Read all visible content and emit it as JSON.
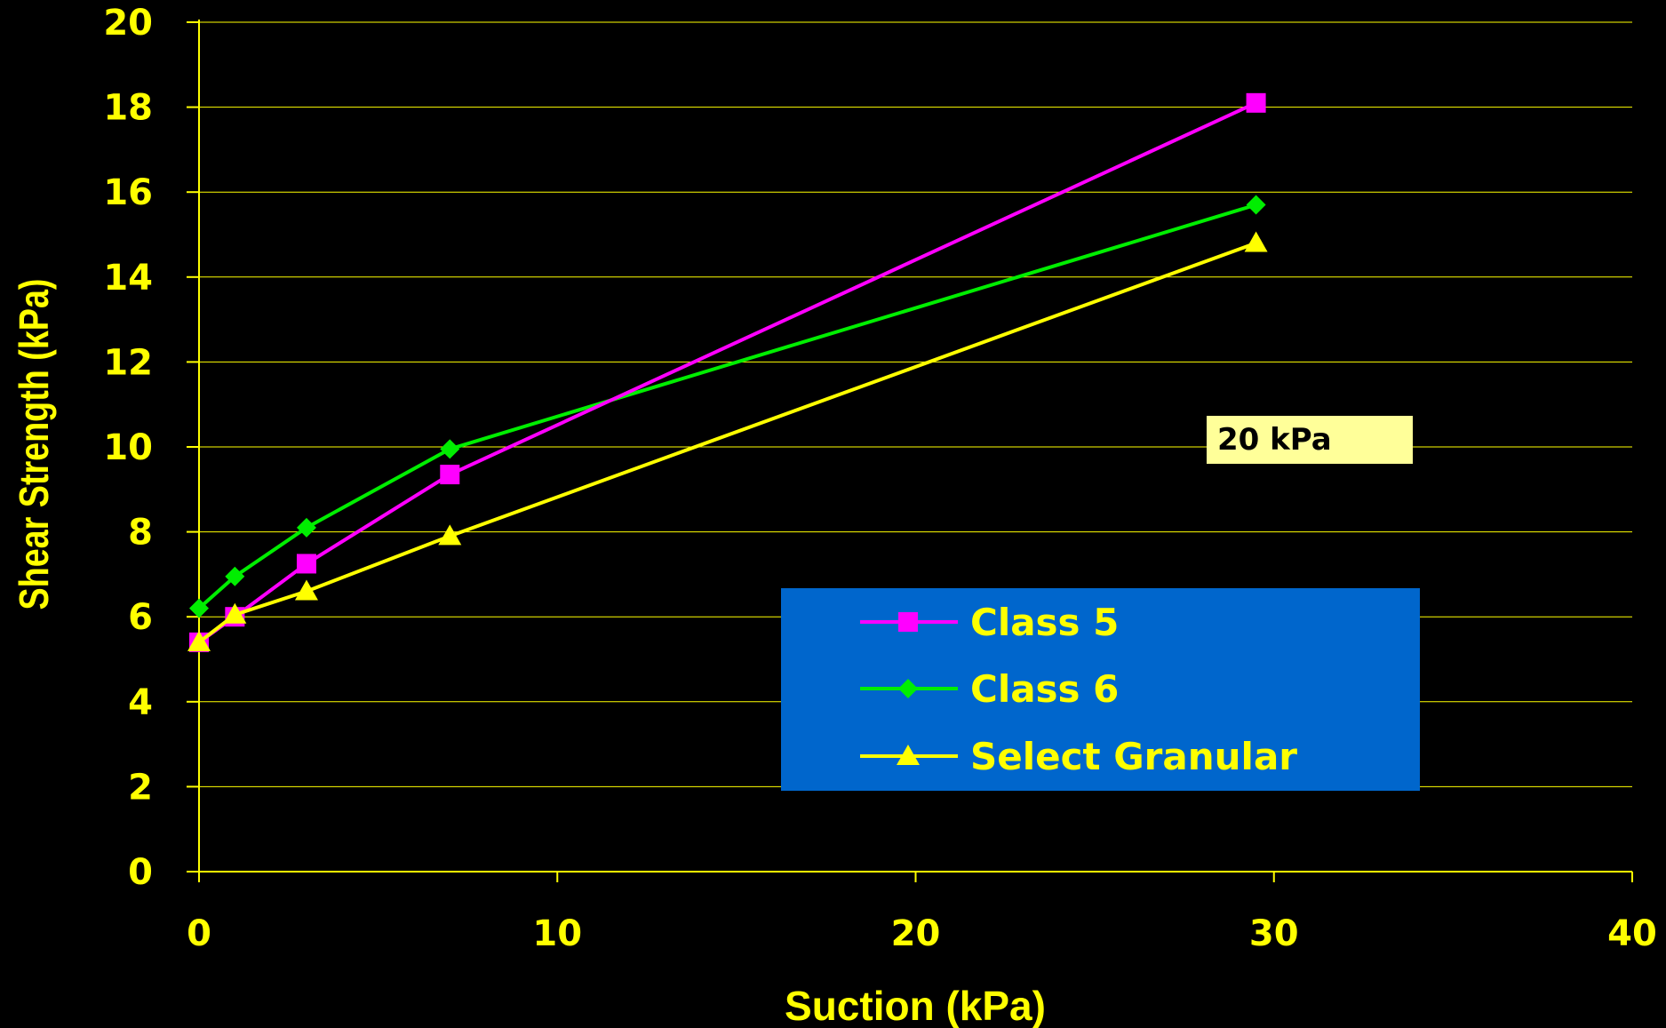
{
  "chart_data": {
    "type": "line",
    "title": "",
    "xlabel": "Suction (kPa)",
    "ylabel": "Shear Strength (kPa)",
    "xlim": [
      0,
      40
    ],
    "ylim": [
      0,
      20
    ],
    "xticks": [
      "0",
      "10",
      "20",
      "30",
      "40"
    ],
    "yticks": [
      "0",
      "2",
      "4",
      "6",
      "8",
      "10",
      "12",
      "14",
      "16",
      "18",
      "20"
    ],
    "grid": "horizontal",
    "legend_position": "lower-right",
    "background": "#000000",
    "axis_color": "#ffff00",
    "series": [
      {
        "name": "Class 5",
        "color": "#ff00ff",
        "marker": "square",
        "x": [
          0,
          1,
          3,
          7,
          29.5
        ],
        "y": [
          5.4,
          6.0,
          7.25,
          9.35,
          18.1
        ]
      },
      {
        "name": "Class 6",
        "color": "#00ee00",
        "marker": "diamond",
        "x": [
          0,
          1,
          3,
          7,
          29.5
        ],
        "y": [
          6.2,
          6.95,
          8.1,
          9.95,
          15.7
        ]
      },
      {
        "name": "Select Granular",
        "color": "#ffff00",
        "marker": "triangle",
        "x": [
          0,
          1,
          3,
          7,
          29.5
        ],
        "y": [
          5.4,
          6.05,
          6.6,
          7.9,
          14.8
        ]
      }
    ],
    "annotation": {
      "text": "20 kPa",
      "x": 30.7,
      "y": 10.2,
      "background": "#ffff99"
    },
    "legend_background": "#0066cc"
  }
}
